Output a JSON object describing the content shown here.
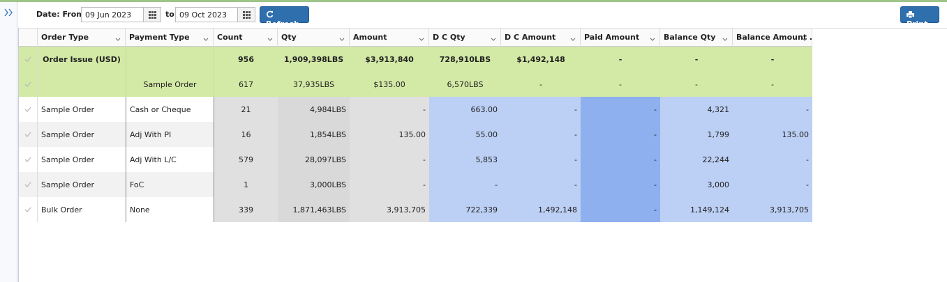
{
  "toolbar": {
    "date_label": "Date: From",
    "from": "09 Jun 2023",
    "to_label": "to",
    "to": "09 Oct 2023",
    "refresh": "Refresh",
    "print": "Print"
  },
  "table": {
    "columns": [
      "Order Type",
      "Payment Type",
      "Count",
      "Qty",
      "Amount",
      "D C Qty",
      "D C Amount",
      "Paid Amount",
      "Balance Qty",
      "Balance Amount ..."
    ],
    "rows": [
      [
        "Order Issue (USD)",
        null,
        "956",
        "1,909,398LBS",
        "$3,913,840",
        "728,910LBS",
        "$1,492,148",
        "-",
        "-",
        "-"
      ],
      [
        null,
        "Sample Order",
        "617",
        "37,935LBS",
        "$135.00",
        "6,570LBS",
        "-",
        "-",
        "-",
        "-"
      ],
      [
        "Sample Order",
        "Cash or Cheque",
        "21",
        "4,984LBS",
        "-",
        "663.00",
        "-",
        "-",
        "4,321",
        "-"
      ],
      [
        "Sample Order",
        "Adj With PI",
        "16",
        "1,854LBS",
        "135.00",
        "55.00",
        "-",
        "-",
        "1,799",
        "135.00"
      ],
      [
        "Sample Order",
        "Adj With L/C",
        "579",
        "28,097LBS",
        "-",
        "5,853",
        "-",
        "-",
        "22,244",
        "-"
      ],
      [
        "Sample Order",
        "FoC",
        "1",
        "3,000LBS",
        "-",
        "-",
        "-",
        "-",
        "3,000",
        "-"
      ],
      [
        "Bulk Order",
        "None",
        "339",
        "1,871,463LBS",
        "3,913,705",
        "722,339",
        "1,492,148",
        "-",
        "1,149,124",
        "3,913,705"
      ]
    ]
  }
}
